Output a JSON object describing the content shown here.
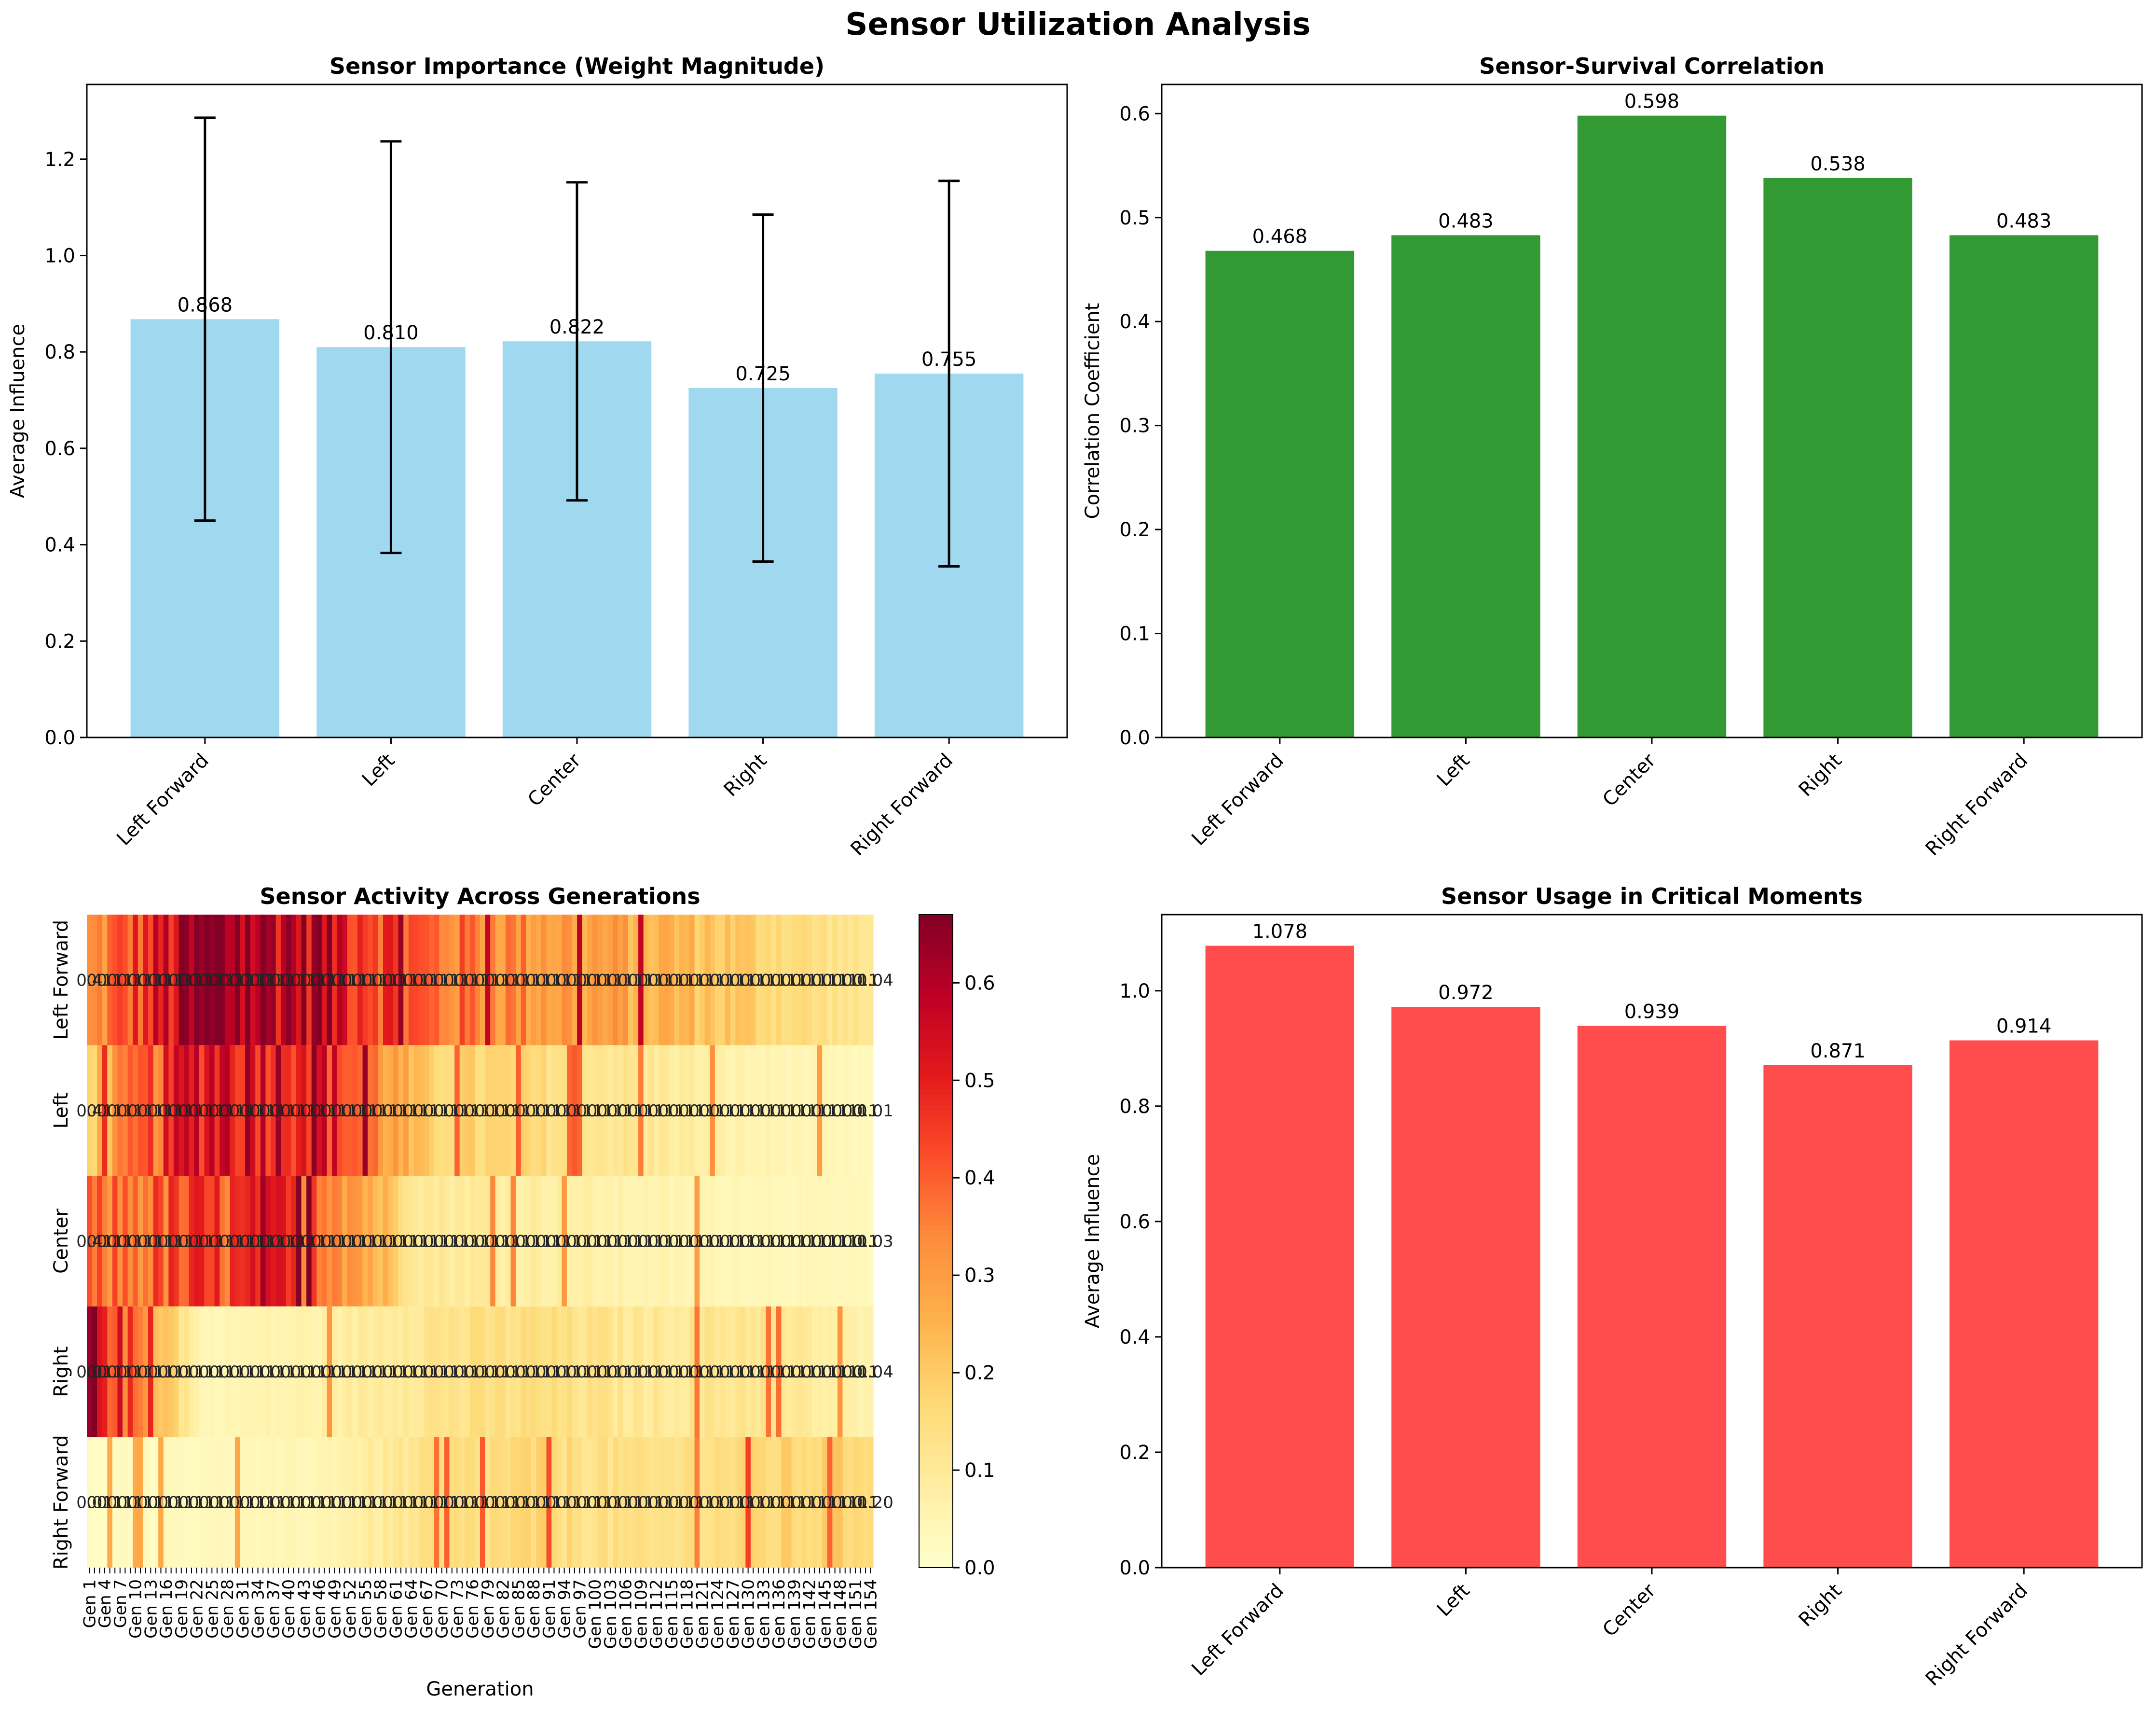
{
  "figure": {
    "title": "Sensor Utilization Analysis"
  },
  "colors": {
    "importance": "#87ceeb",
    "correlation": "#008000",
    "critical": "#ff0000",
    "text": "#000000",
    "axis": "#000000"
  },
  "chart_data": [
    {
      "type": "bar",
      "title": "Sensor Importance (Weight Magnitude)",
      "xlabel": "",
      "ylabel": "Average Influence",
      "categories": [
        "Left Forward",
        "Left",
        "Center",
        "Right",
        "Right Forward"
      ],
      "values": [
        0.868,
        0.81,
        0.822,
        0.725,
        0.755
      ],
      "value_labels": [
        "0.868",
        "0.810",
        "0.822",
        "0.725",
        "0.755"
      ],
      "error": [
        0.418,
        0.427,
        0.33,
        0.36,
        0.4
      ],
      "ylim": [
        0,
        1.355
      ],
      "yticks": [
        0,
        0.2,
        0.4,
        0.6,
        0.8,
        1.0,
        1.2
      ],
      "ytick_labels": [
        "0.0",
        "0.2",
        "0.4",
        "0.6",
        "0.8",
        "1.0",
        "1.2"
      ],
      "bar_color": "#87ceeb",
      "alpha": 0.8
    },
    {
      "type": "bar",
      "title": "Sensor-Survival Correlation",
      "xlabel": "",
      "ylabel": "Correlation Coefficient",
      "categories": [
        "Left Forward",
        "Left",
        "Center",
        "Right",
        "Right Forward"
      ],
      "values": [
        0.468,
        0.483,
        0.598,
        0.538,
        0.483
      ],
      "value_labels": [
        "0.468",
        "0.483",
        "0.598",
        "0.538",
        "0.483"
      ],
      "ylim": [
        0,
        0.628
      ],
      "yticks": [
        0,
        0.1,
        0.2,
        0.3,
        0.4,
        0.5,
        0.6
      ],
      "ytick_labels": [
        "0.0",
        "0.1",
        "0.2",
        "0.3",
        "0.4",
        "0.5",
        "0.6"
      ],
      "bar_color": "#008000",
      "alpha": 0.8
    },
    {
      "type": "heatmap",
      "title": "Sensor Activity Across Generations",
      "xlabel": "Generation",
      "ylabel": "",
      "rows": [
        "Left Forward",
        "Left",
        "Center",
        "Right",
        "Right Forward"
      ],
      "n_generations": 154,
      "colorbar": {
        "min": 0.0,
        "max": 0.67,
        "ticks": [
          0.0,
          0.1,
          0.2,
          0.3,
          0.4,
          0.5,
          0.6
        ],
        "tick_labels": [
          "0.0",
          "0.1",
          "0.2",
          "0.3",
          "0.4",
          "0.5",
          "0.6"
        ]
      },
      "row_profiles": [
        {
          "name": "Left Forward",
          "values": [
            0.3,
            0.62,
            0.6,
            0.38,
            0.32,
            0.26,
            0.18,
            0.1
          ],
          "first_label": "0.4",
          "last_label": "0.04"
        },
        {
          "name": "Left",
          "values": [
            0.2,
            0.55,
            0.55,
            0.18,
            0.15,
            0.1,
            0.05,
            0.03
          ],
          "first_label": "0.4",
          "last_label": "0.01"
        },
        {
          "name": "Center",
          "values": [
            0.35,
            0.42,
            0.45,
            0.1,
            0.08,
            0.05,
            0.04,
            0.03
          ],
          "first_label": "0.4",
          "last_label": "0.03"
        },
        {
          "name": "Right",
          "values": [
            0.6,
            0.04,
            0.06,
            0.12,
            0.14,
            0.1,
            0.12,
            0.05
          ],
          "first_label": "0.0",
          "last_label": "0.04"
        },
        {
          "name": "Right Forward",
          "values": [
            0.02,
            0.03,
            0.04,
            0.12,
            0.16,
            0.12,
            0.16,
            0.18
          ],
          "first_label": "0.0",
          "last_label": "0.20"
        }
      ],
      "cmap": "YlOrRd"
    },
    {
      "type": "bar",
      "title": "Sensor Usage in Critical Moments",
      "xlabel": "",
      "ylabel": "Average Influence",
      "categories": [
        "Left Forward",
        "Left",
        "Center",
        "Right",
        "Right Forward"
      ],
      "values": [
        1.078,
        0.972,
        0.939,
        0.871,
        0.914
      ],
      "value_labels": [
        "1.078",
        "0.972",
        "0.939",
        "0.871",
        "0.914"
      ],
      "ylim": [
        0,
        1.132
      ],
      "yticks": [
        0,
        0.2,
        0.4,
        0.6,
        0.8,
        1.0
      ],
      "ytick_labels": [
        "0.0",
        "0.2",
        "0.4",
        "0.6",
        "0.8",
        "1.0"
      ],
      "bar_color": "#ff0000",
      "alpha": 0.7
    }
  ]
}
